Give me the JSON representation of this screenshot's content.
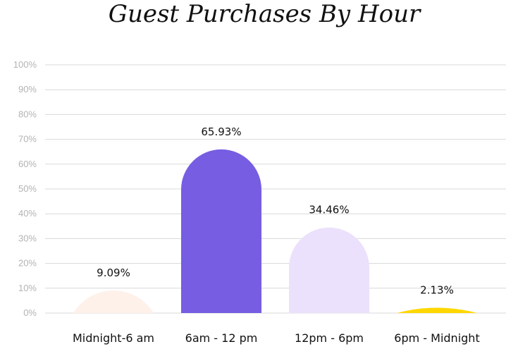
{
  "chart_data": {
    "type": "bar",
    "title": "Guest Purchases By Hour",
    "xlabel": "",
    "ylabel": "",
    "ylim": [
      0,
      100
    ],
    "y_ticks": [
      "0%",
      "10%",
      "20%",
      "30%",
      "40%",
      "50%",
      "60%",
      "70%",
      "80%",
      "90%",
      "100%"
    ],
    "grid": true,
    "legend": "none",
    "categories": [
      "Midnight-6 am",
      "6am - 12 pm",
      "12pm - 6pm",
      "6pm - Midnight"
    ],
    "values": [
      9.09,
      65.93,
      34.46,
      2.13
    ],
    "value_labels": [
      "9.09%",
      "65.93%",
      "34.46%",
      "2.13%"
    ],
    "colors": [
      "#fdf1ea",
      "#765de2",
      "#ece1fc",
      "#fed700"
    ]
  }
}
